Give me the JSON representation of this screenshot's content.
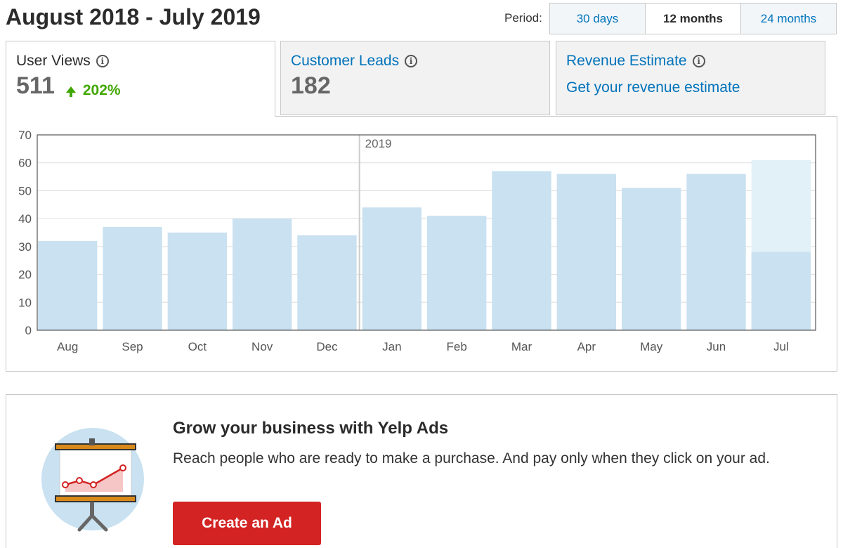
{
  "header": {
    "title": "August 2018 - July 2019",
    "period_label": "Period:",
    "periods": [
      {
        "label": "30 days",
        "active": false
      },
      {
        "label": "12 months",
        "active": true
      },
      {
        "label": "24 months",
        "active": false
      }
    ]
  },
  "metrics": {
    "user_views": {
      "label": "User Views",
      "value": "511",
      "change": "202%"
    },
    "customer_leads": {
      "label": "Customer Leads",
      "value": "182"
    },
    "revenue_estimate": {
      "label": "Revenue Estimate",
      "link": "Get your revenue estimate"
    }
  },
  "chart_data": {
    "type": "bar",
    "categories": [
      "Aug",
      "Sep",
      "Oct",
      "Nov",
      "Dec",
      "Jan",
      "Feb",
      "Mar",
      "Apr",
      "May",
      "Jun",
      "Jul"
    ],
    "values": [
      32,
      37,
      35,
      40,
      34,
      44,
      41,
      57,
      56,
      51,
      56,
      28
    ],
    "projected": [
      null,
      null,
      null,
      null,
      null,
      null,
      null,
      null,
      null,
      null,
      null,
      61
    ],
    "ylim": [
      0,
      70
    ],
    "yticks": [
      0,
      10,
      20,
      30,
      40,
      50,
      60,
      70
    ],
    "year_marker": {
      "label": "2019",
      "before_index": 5
    },
    "grid": true,
    "colors": {
      "bar": "#c9e1f0",
      "projected": "#e2f0f8",
      "grid": "#dddddd",
      "axis": "#555555"
    }
  },
  "ad": {
    "title": "Grow your business with Yelp Ads",
    "description": "Reach people who are ready to make a purchase. And pay only when they click on your ad.",
    "button_label": "Create an Ad",
    "icon": "presentation-chart-icon"
  }
}
